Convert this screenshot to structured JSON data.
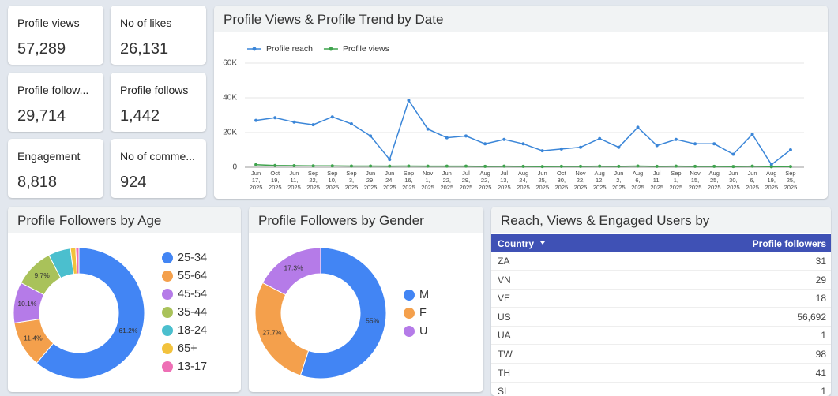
{
  "kpis": [
    {
      "title": "Profile views",
      "value": "57,289"
    },
    {
      "title": "No of likes",
      "value": "26,131"
    },
    {
      "title": "Profile follow...",
      "value": "29,714"
    },
    {
      "title": "Profile follows",
      "value": "1,442"
    },
    {
      "title": "Engagement",
      "value": "8,818"
    },
    {
      "title": "No of comme...",
      "value": "924"
    }
  ],
  "chart_data": [
    {
      "type": "line",
      "title": "Profile Views & Profile Trend by Date",
      "categories": [
        "Jun 17, 2025",
        "Oct 19, 2025",
        "Jun 11, 2025",
        "Sep 22, 2025",
        "Sep 10, 2025",
        "Sep 3, 2025",
        "Jun 29, 2025",
        "Jun 24, 2025",
        "Sep 16, 2025",
        "Nov 1, 2025",
        "Jun 22, 2025",
        "Jul 29, 2025",
        "Aug 22, 2025",
        "Jul 13, 2025",
        "Aug 24, 2025",
        "Jun 25, 2025",
        "Oct 30, 2025",
        "Nov 22, 2025",
        "Aug 12, 2025",
        "Jun 2, 2025",
        "Aug 6, 2025",
        "Jul 11, 2025",
        "Sep 1, 2025",
        "Nov 15, 2025",
        "Aug 25, 2025",
        "Jun 30, 2025",
        "Jun 6, 2025",
        "Aug 19, 2025",
        "Sep 25, 2025"
      ],
      "series": [
        {
          "name": "Profile reach",
          "color": "#3b86d8",
          "values": [
            27000,
            28500,
            26000,
            24500,
            29000,
            25000,
            18000,
            4500,
            38500,
            22000,
            17000,
            18000,
            13500,
            16000,
            13500,
            9500,
            10500,
            11500,
            16500,
            11500,
            23000,
            12500,
            16000,
            13500,
            13500,
            7500,
            19000,
            1500,
            10000
          ]
        },
        {
          "name": "Profile views",
          "color": "#3fa34d",
          "values": [
            1500,
            1000,
            900,
            800,
            800,
            700,
            700,
            600,
            700,
            600,
            600,
            600,
            500,
            600,
            500,
            400,
            500,
            500,
            600,
            500,
            700,
            500,
            600,
            500,
            500,
            400,
            600,
            300,
            400
          ]
        }
      ],
      "ylim": [
        0,
        60000
      ],
      "yticks": [
        0,
        {
          "value": 20000,
          "label": "20K"
        },
        {
          "value": 40000,
          "label": "40K"
        },
        {
          "value": 60000,
          "label": "60K"
        }
      ],
      "grid": true
    },
    {
      "type": "pie",
      "title": "Profile Followers by Age",
      "categories": [
        "25-34",
        "55-64",
        "45-54",
        "35-44",
        "18-24",
        "65+",
        "13-17"
      ],
      "values": [
        61.2,
        11.4,
        10.1,
        9.7,
        5.5,
        1.3,
        0.8
      ],
      "value_labels": [
        "61.2%",
        "11.4%",
        "10.1%",
        "9.7%",
        null,
        null,
        null
      ],
      "colors": [
        "#4285f4",
        "#f4a04c",
        "#b57be8",
        "#a9c25a",
        "#4bbfce",
        "#f2c23c",
        "#ee6fb5"
      ]
    },
    {
      "type": "pie",
      "title": "Profile Followers by Gender",
      "categories": [
        "M",
        "F",
        "U"
      ],
      "values": [
        55,
        27.7,
        17.3
      ],
      "value_labels": [
        "55%",
        "27.7%",
        "17.3%"
      ],
      "colors": [
        "#4285f4",
        "#f4a04c",
        "#b57be8"
      ]
    }
  ],
  "table": {
    "title": "Reach, Views & Engaged Users by",
    "columns": [
      "Country",
      "Profile followers"
    ],
    "rows": [
      [
        "ZA",
        "31"
      ],
      [
        "VN",
        "29"
      ],
      [
        "VE",
        "18"
      ],
      [
        "US",
        "56,692"
      ],
      [
        "UA",
        "1"
      ],
      [
        "TW",
        "98"
      ],
      [
        "TH",
        "41"
      ],
      [
        "SI",
        "1"
      ]
    ]
  }
}
